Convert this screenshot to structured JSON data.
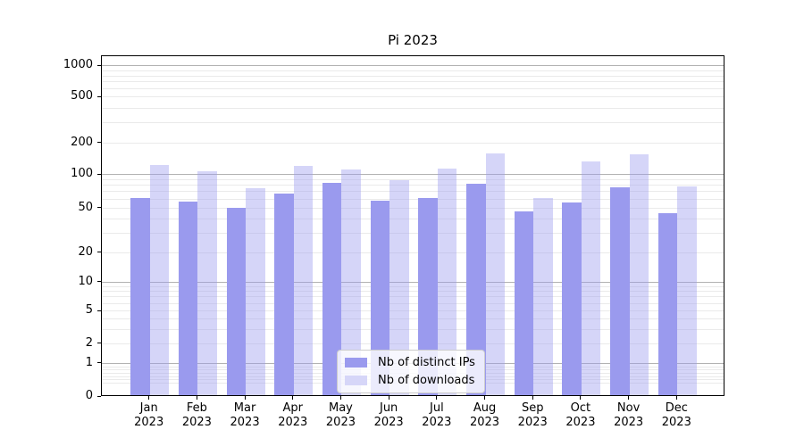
{
  "title": "Pi 2023",
  "chart_data": {
    "type": "bar",
    "title": "Pi 2023",
    "categories": [
      "Jan",
      "Feb",
      "Mar",
      "Apr",
      "May",
      "Jun",
      "Jul",
      "Aug",
      "Sep",
      "Oct",
      "Nov",
      "Dec"
    ],
    "category_year": "2023",
    "series": [
      {
        "name": "Nb of distinct IPs",
        "color": "#9a9aee",
        "values": [
          60,
          56,
          49,
          66,
          82,
          57,
          60,
          80,
          45,
          55,
          74,
          44
        ]
      },
      {
        "name": "Nb of downloads",
        "color": "rgba(154,154,238,0.42)",
        "legend_color": "#d6d6f8",
        "values": [
          120,
          105,
          73,
          118,
          108,
          86,
          110,
          155,
          60,
          130,
          151,
          76
        ]
      }
    ],
    "y_axis": {
      "scale": "symlog",
      "ticks": [
        0,
        1,
        2,
        5,
        10,
        20,
        50,
        100,
        200,
        500,
        1000
      ],
      "ylim": [
        0,
        1200
      ]
    },
    "x_axis": {
      "label_lines": 2
    },
    "legend_position": "lower center",
    "grid": true
  }
}
